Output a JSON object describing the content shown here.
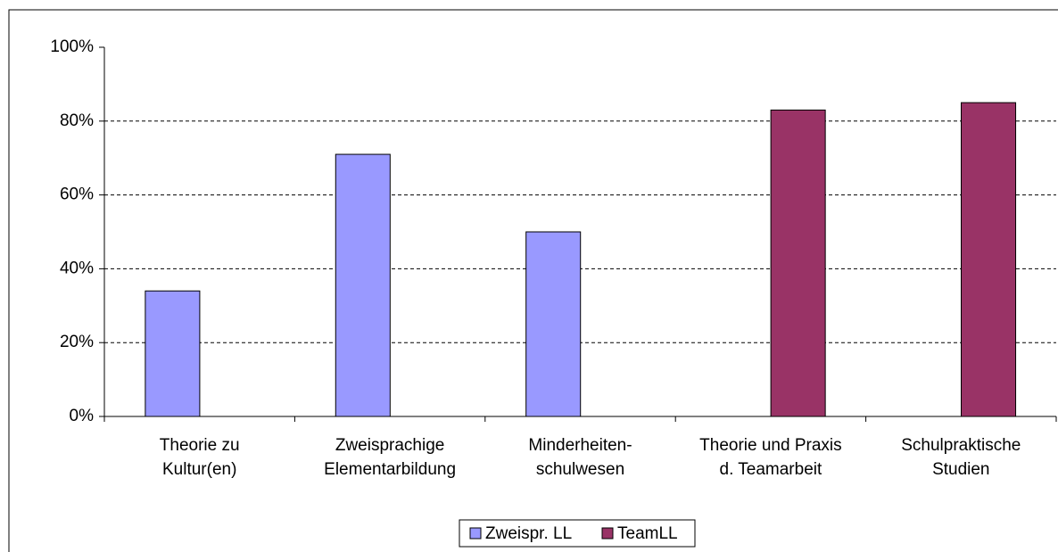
{
  "chart_data": {
    "type": "bar",
    "categories": [
      [
        "Theorie zu",
        "Kultur(en)"
      ],
      [
        "Zweisprachige",
        "Elementarbildung"
      ],
      [
        "Minderheiten-",
        "schulwesen"
      ],
      [
        "Theorie und Praxis",
        "d. Teamarbeit"
      ],
      [
        "Schulpraktische",
        "Studien"
      ]
    ],
    "series": [
      {
        "name": "Zweispr. LL",
        "color": "#9999ff",
        "values": [
          34,
          71,
          50,
          null,
          null
        ]
      },
      {
        "name": "TeamLL",
        "color": "#993366",
        "values": [
          null,
          null,
          null,
          83,
          85
        ]
      }
    ],
    "ylim": [
      0,
      100
    ],
    "yticks": [
      {
        "value": 0,
        "label": "0%"
      },
      {
        "value": 20,
        "label": "20%"
      },
      {
        "value": 40,
        "label": "40%"
      },
      {
        "value": 60,
        "label": "60%"
      },
      {
        "value": 80,
        "label": "80%"
      },
      {
        "value": 100,
        "label": "100%"
      }
    ],
    "grid": true,
    "legend": "bottom"
  }
}
